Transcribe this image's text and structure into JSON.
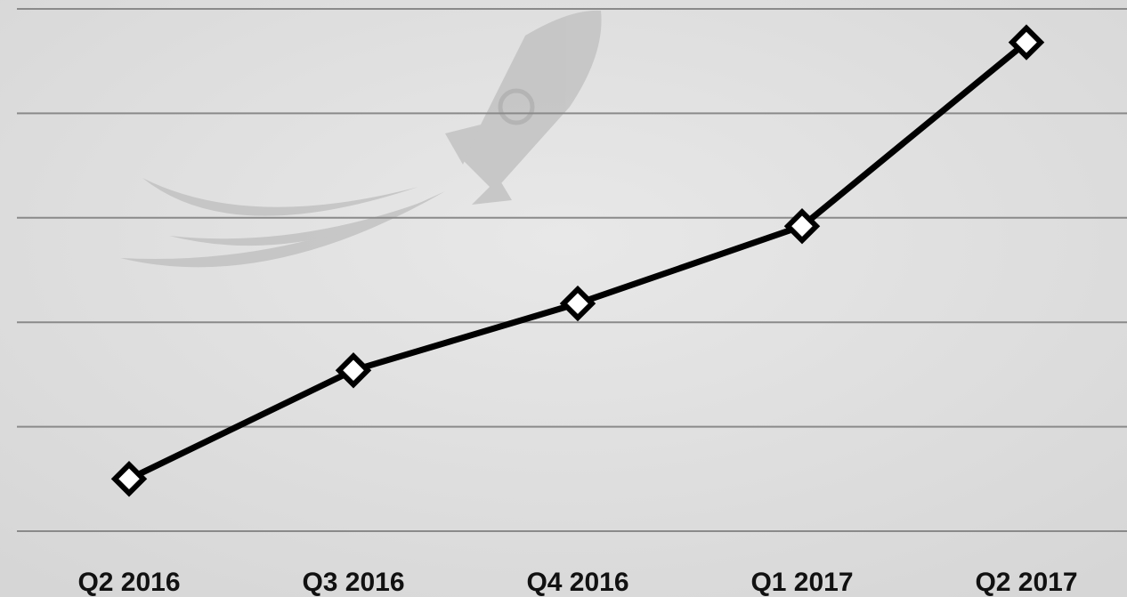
{
  "chart_data": {
    "type": "line",
    "categories": [
      "Q2 2016",
      "Q3 2016",
      "Q4 2016",
      "Q1 2017",
      "Q2 2017"
    ],
    "series": [
      {
        "color": "#000000",
        "values": [
          0.5,
          1.54,
          2.18,
          2.92,
          4.68
        ]
      }
    ],
    "ylim": [
      0,
      5
    ],
    "yticks": [
      0,
      1,
      2,
      3,
      4,
      5
    ],
    "grid": true
  }
}
